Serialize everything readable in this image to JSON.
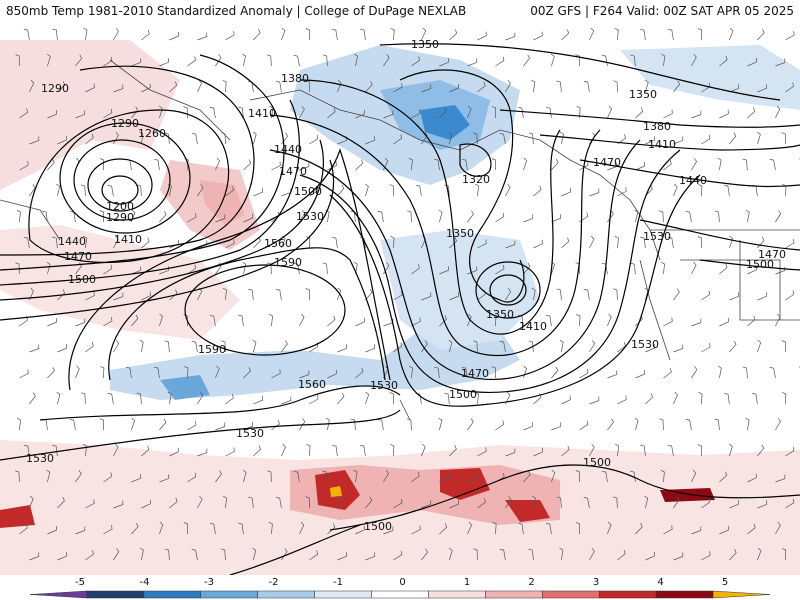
{
  "header": {
    "left": "850mb Temp 1981-2010 Standardized Anomaly | College of DuPage NEXLAB",
    "right": "00Z GFS | F264 Valid: 00Z SAT APR 05 2025"
  },
  "colorbar": {
    "ticks": [
      "-5",
      "-4",
      "-3",
      "-2",
      "-1",
      "0",
      "1",
      "2",
      "3",
      "4",
      "5"
    ],
    "colors": [
      "#6a3d9a",
      "#23406e",
      "#2f7bbf",
      "#6aa8dc",
      "#a8cbe9",
      "#dce9f5",
      "#ffffff",
      "#f7dede",
      "#efb3b3",
      "#e07070",
      "#c22a2a",
      "#8b0a14",
      "#f0b400"
    ]
  },
  "contour_labels": [
    {
      "id": "l1290a",
      "text": "1290"
    },
    {
      "id": "l1290b",
      "text": "1290"
    },
    {
      "id": "l1260",
      "text": "1260"
    },
    {
      "id": "l1200",
      "text": "1200"
    },
    {
      "id": "l1290c",
      "text": "1290"
    },
    {
      "id": "l1410a",
      "text": "1410"
    },
    {
      "id": "l1440a",
      "text": "1440"
    },
    {
      "id": "l1470a",
      "text": "1470"
    },
    {
      "id": "l1500a",
      "text": "1500"
    },
    {
      "id": "l1380a",
      "text": "1380"
    },
    {
      "id": "l1410b",
      "text": "1410"
    },
    {
      "id": "l1440b",
      "text": "1440"
    },
    {
      "id": "l1470b",
      "text": "1470"
    },
    {
      "id": "l1500b",
      "text": "1500"
    },
    {
      "id": "l1530a",
      "text": "1530"
    },
    {
      "id": "l1560a",
      "text": "1560"
    },
    {
      "id": "l1590a",
      "text": "1590"
    },
    {
      "id": "l1590b",
      "text": "1590"
    },
    {
      "id": "l1560b",
      "text": "1560"
    },
    {
      "id": "l1530b",
      "text": "1530"
    },
    {
      "id": "l1530c",
      "text": "1530"
    },
    {
      "id": "l1530d",
      "text": "1530"
    },
    {
      "id": "l1350a",
      "text": "1350"
    },
    {
      "id": "l1320",
      "text": "1320"
    },
    {
      "id": "l1350b",
      "text": "1350"
    },
    {
      "id": "l1350c",
      "text": "1350"
    },
    {
      "id": "l1410c",
      "text": "1410"
    },
    {
      "id": "l1470c",
      "text": "1470"
    },
    {
      "id": "l1500c",
      "text": "1500"
    },
    {
      "id": "l1350d",
      "text": "1350"
    },
    {
      "id": "l1380b",
      "text": "1380"
    },
    {
      "id": "l1410d",
      "text": "1410"
    },
    {
      "id": "l1440c",
      "text": "1440"
    },
    {
      "id": "l1470d",
      "text": "1470"
    },
    {
      "id": "l1530e",
      "text": "1530"
    },
    {
      "id": "l1470e",
      "text": "1470"
    },
    {
      "id": "l1500d",
      "text": "1500"
    },
    {
      "id": "l1530f",
      "text": "1530"
    },
    {
      "id": "l1500e",
      "text": "1500"
    },
    {
      "id": "l1500f",
      "text": "1500"
    }
  ]
}
